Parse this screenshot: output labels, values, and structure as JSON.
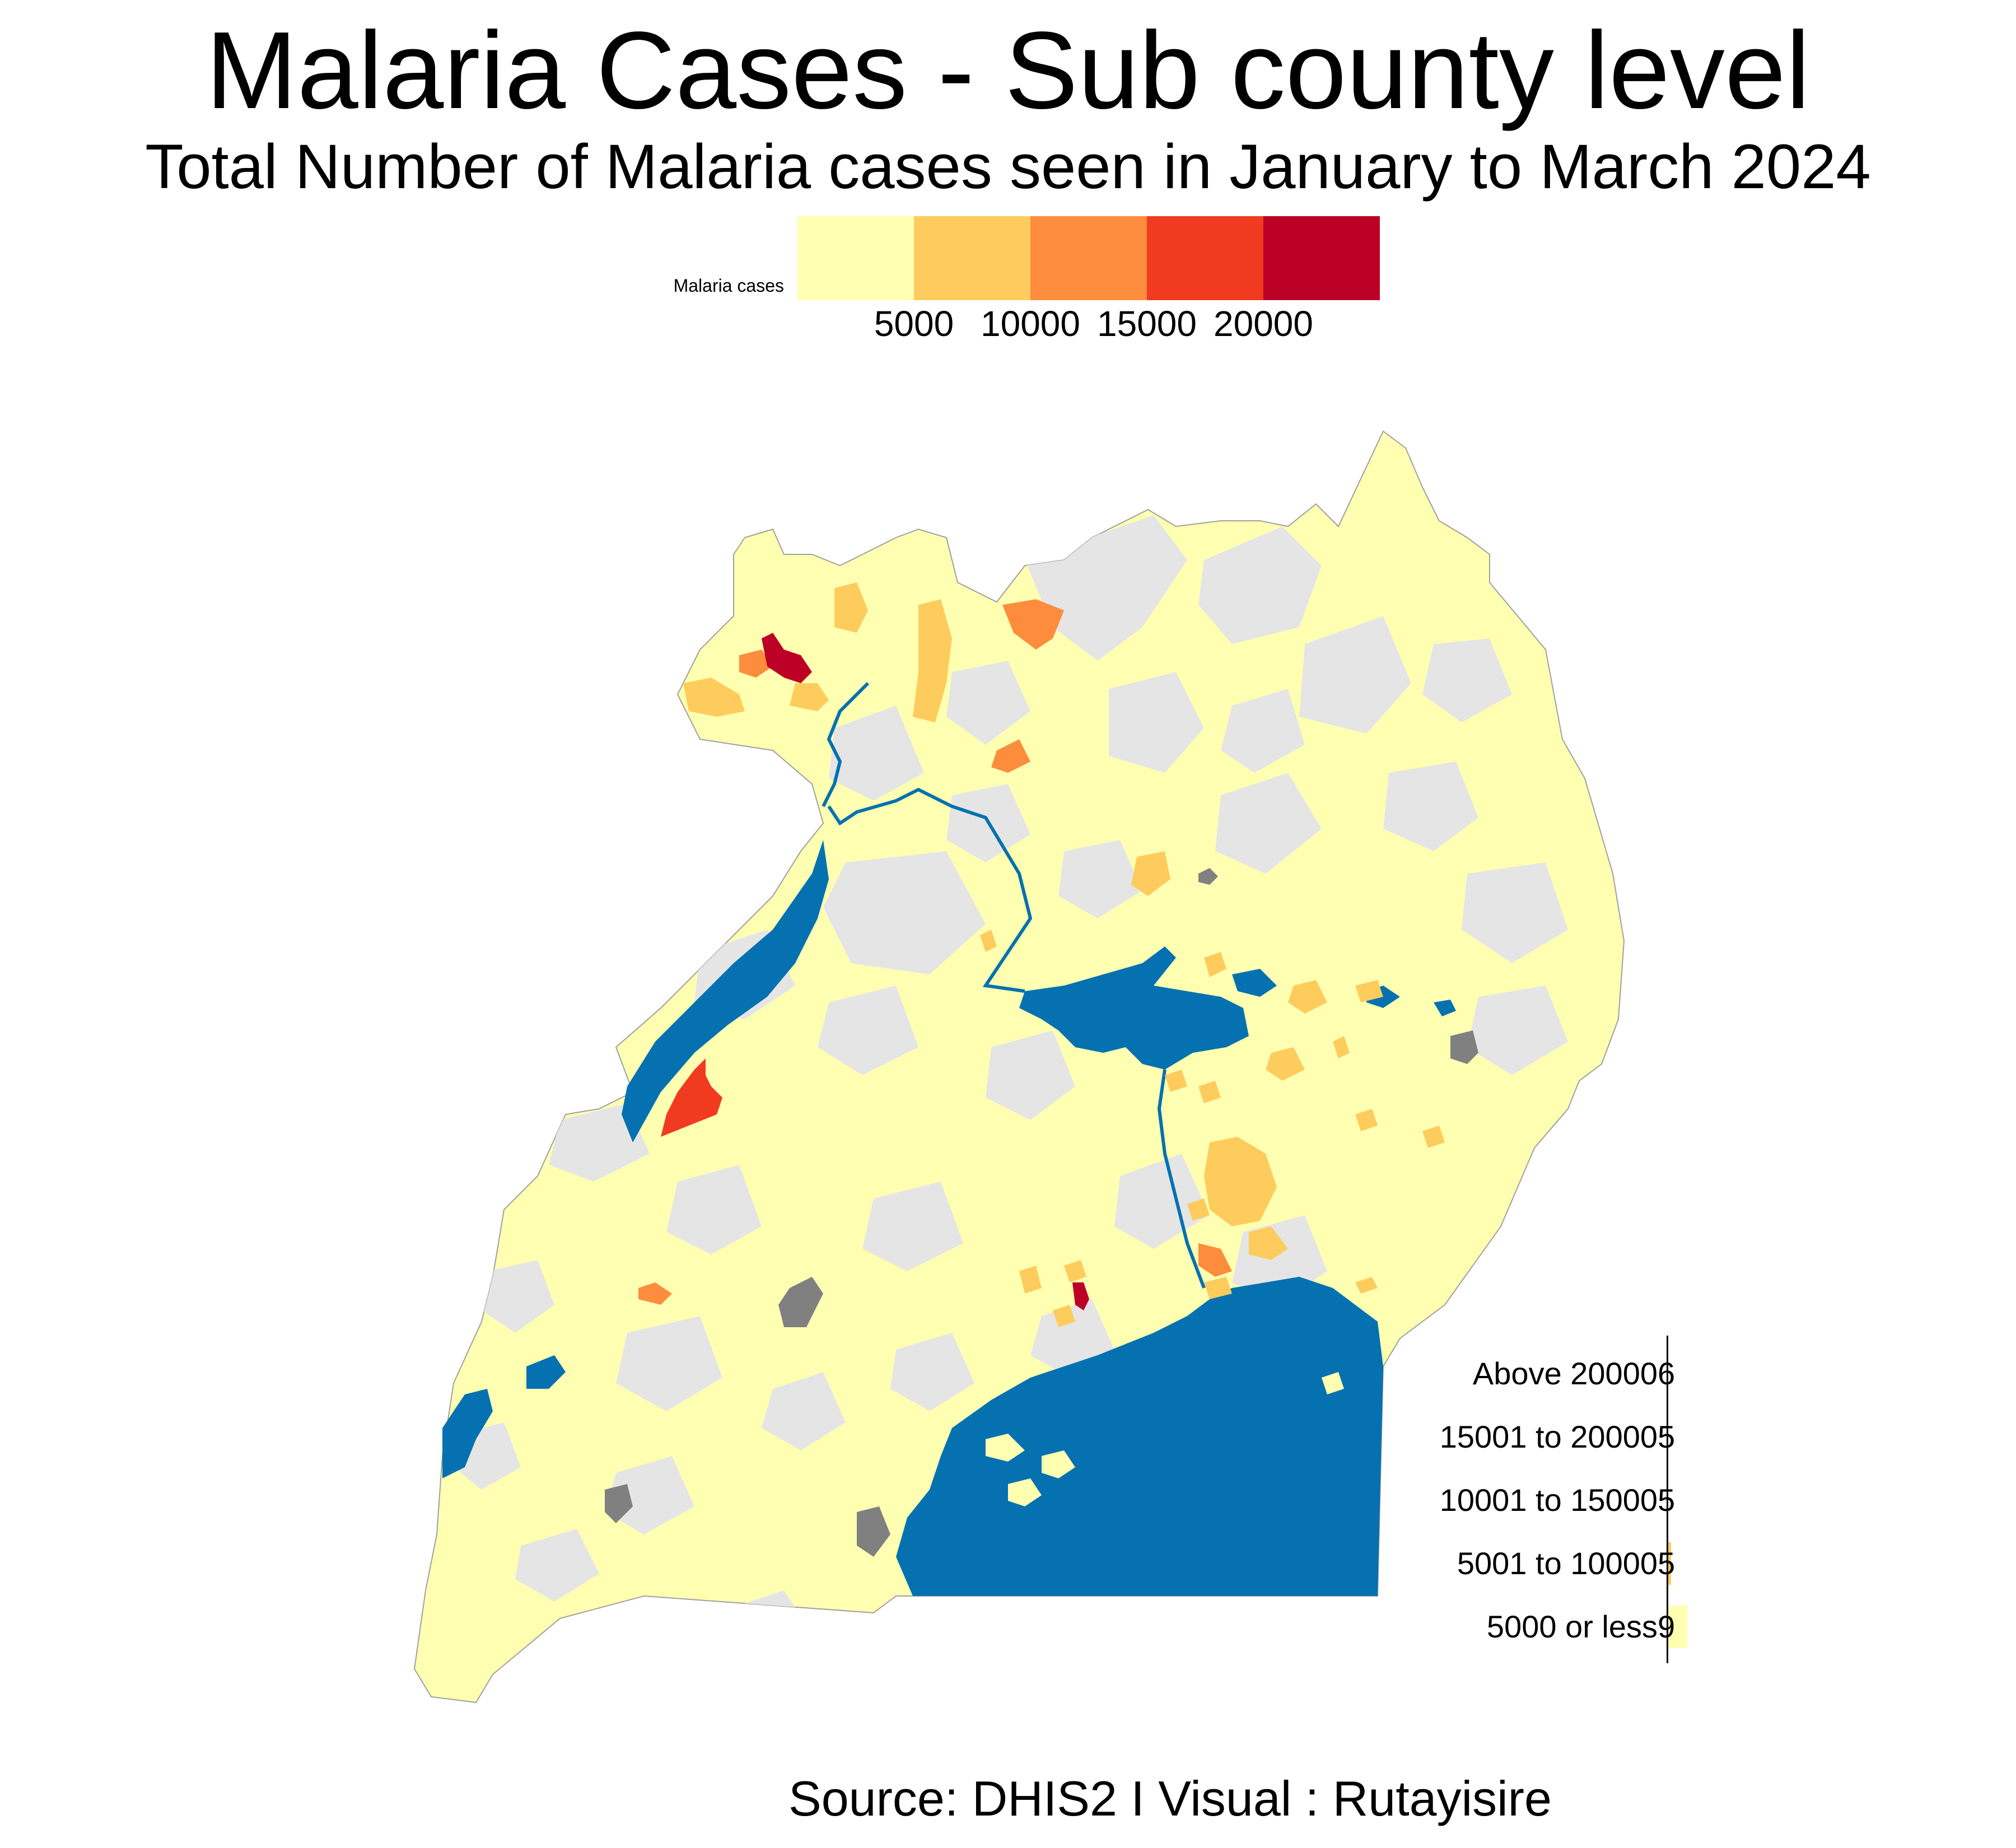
{
  "header": {
    "title": "Malaria Cases - Sub county level",
    "subtitle": "Total Number of Malaria cases seen in  January to March 2024"
  },
  "colorbar": {
    "title": "Malaria cases",
    "colors": [
      "#ffffb2",
      "#fecc5c",
      "#fd8d3c",
      "#f03b20",
      "#bd0026"
    ],
    "ticks": [
      "5000",
      "10000",
      "15000",
      "20000"
    ]
  },
  "map": {
    "region": "Uganda",
    "water_color": "#0571b0",
    "no_data_color": "#e5e5e5",
    "missing_color": "#808080",
    "border_color": "#a0a0a0"
  },
  "bar_legend": {
    "categories": [
      {
        "label": "Above 20000",
        "value": "6",
        "color": "#bd0026",
        "fill": 0.0
      },
      {
        "label": "15001 to 20000",
        "value": "5",
        "color": "#f03b20",
        "fill": 0.0
      },
      {
        "label": "10001 to 15000",
        "value": "5",
        "color": "#fd8d3c",
        "fill": 0.0
      },
      {
        "label": "5001 to 10000",
        "value": "5",
        "color": "#fecc5c",
        "fill": 0.12
      },
      {
        "label": "5000 or less",
        "value": "9",
        "color": "#ffffb2",
        "fill": 0.85
      }
    ]
  },
  "footer": {
    "source": "Source: DHIS2  I Visual : Rutayisire"
  }
}
